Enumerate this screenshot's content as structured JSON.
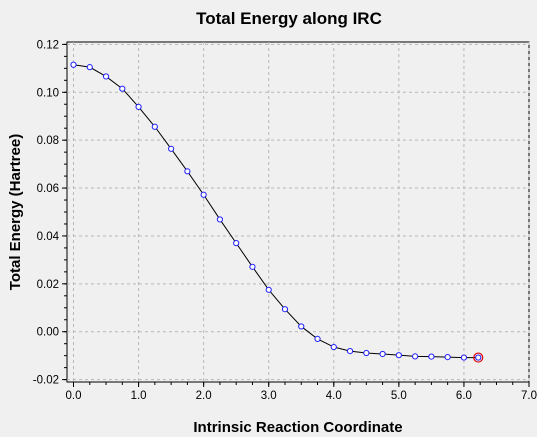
{
  "chart_data": {
    "type": "line",
    "title": "Total Energy along IRC",
    "xlabel": "Intrinsic Reaction Coordinate",
    "ylabel": "Total Energy (Hartree)",
    "xlim": [
      -0.1,
      7.0
    ],
    "ylim": [
      -0.021,
      0.121
    ],
    "x_ticks": [
      "0.0",
      "1.0",
      "2.0",
      "3.0",
      "4.0",
      "5.0",
      "6.0",
      "7.0"
    ],
    "y_ticks": [
      "-0.02",
      "0.00",
      "0.02",
      "0.04",
      "0.06",
      "0.08",
      "0.10",
      "0.12"
    ],
    "grid": true,
    "series": [
      {
        "x": [
          0.0,
          0.25,
          0.5,
          0.75,
          1.0,
          1.25,
          1.5,
          1.75,
          2.0,
          2.25,
          2.5,
          2.75,
          3.0,
          3.25,
          3.5,
          3.75,
          4.0,
          4.25,
          4.5,
          4.75,
          5.0,
          5.25,
          5.5,
          5.75,
          6.0,
          6.22
        ],
        "y": [
          0.1115,
          0.1105,
          0.1066,
          0.1015,
          0.0939,
          0.0856,
          0.0764,
          0.067,
          0.0572,
          0.0469,
          0.037,
          0.0271,
          0.0175,
          0.0094,
          0.0022,
          -0.003,
          -0.0064,
          -0.0081,
          -0.0089,
          -0.0093,
          -0.0098,
          -0.0103,
          -0.0104,
          -0.0106,
          -0.0108,
          -0.0108
        ]
      }
    ],
    "highlight_point": {
      "x": 6.22,
      "y": -0.0108,
      "color": "#e00000"
    },
    "colors": {
      "curve": "#000000",
      "point_edge": "#1f1fff",
      "highlight": "#e00000",
      "grid": "#b8b8b8",
      "background": "#f0f0f0"
    }
  }
}
